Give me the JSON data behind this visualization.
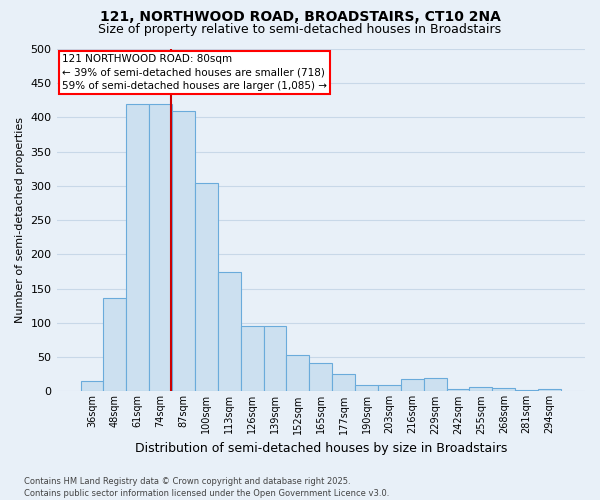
{
  "title_line1": "121, NORTHWOOD ROAD, BROADSTAIRS, CT10 2NA",
  "title_line2": "Size of property relative to semi-detached houses in Broadstairs",
  "xlabel": "Distribution of semi-detached houses by size in Broadstairs",
  "ylabel": "Number of semi-detached properties",
  "footer": "Contains HM Land Registry data © Crown copyright and database right 2025.\nContains public sector information licensed under the Open Government Licence v3.0.",
  "categories": [
    "36sqm",
    "48sqm",
    "61sqm",
    "74sqm",
    "87sqm",
    "100sqm",
    "113sqm",
    "126sqm",
    "139sqm",
    "152sqm",
    "165sqm",
    "177sqm",
    "190sqm",
    "203sqm",
    "216sqm",
    "229sqm",
    "242sqm",
    "255sqm",
    "268sqm",
    "281sqm",
    "294sqm"
  ],
  "values": [
    15,
    137,
    420,
    420,
    410,
    305,
    175,
    95,
    95,
    53,
    42,
    25,
    10,
    10,
    18,
    20,
    3,
    6,
    5,
    2,
    3
  ],
  "bar_color": "#cce0f0",
  "bar_edge_color": "#6aabdb",
  "vline_x": 3.46,
  "vline_color": "#cc0000",
  "annotation_text_line1": "121 NORTHWOOD ROAD: 80sqm",
  "annotation_text_line2": "← 39% of semi-detached houses are smaller (718)",
  "annotation_text_line3": "59% of semi-detached houses are larger (1,085) →",
  "ylim": [
    0,
    500
  ],
  "yticks": [
    0,
    50,
    100,
    150,
    200,
    250,
    300,
    350,
    400,
    450,
    500
  ],
  "bg_color": "#e8f0f8",
  "grid_color": "#c8d8e8",
  "title_fontsize": 10,
  "subtitle_fontsize": 9,
  "ylabel_fontsize": 8,
  "xlabel_fontsize": 9,
  "tick_fontsize": 7,
  "ann_fontsize": 7.5,
  "footer_fontsize": 6
}
